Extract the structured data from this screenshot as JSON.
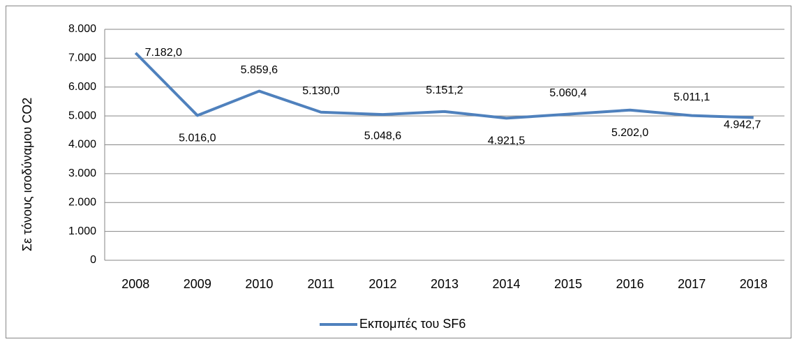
{
  "chart_data": {
    "type": "line",
    "ylabel": "Σε τόνους ισοδύναμου CO2",
    "categories": [
      "2008",
      "2009",
      "2010",
      "2011",
      "2012",
      "2013",
      "2014",
      "2015",
      "2016",
      "2017",
      "2018"
    ],
    "series": [
      {
        "name": "Εκπομπές του SF6",
        "color": "#4f81bd",
        "values": [
          7182.0,
          5016.0,
          5859.6,
          5130.0,
          5048.6,
          5151.2,
          4921.5,
          5060.4,
          5202.0,
          5011.1,
          4942.7
        ],
        "value_labels": [
          "7.182,0",
          "5.016,0",
          "5.859,6",
          "5.130,0",
          "5.048,6",
          "5.151,2",
          "4.921,5",
          "5.060,4",
          "5.202,0",
          "5.011,1",
          "4.942,7"
        ]
      }
    ],
    "ylim": [
      0,
      8000
    ],
    "yticks": [
      0,
      {
        "value": 1000,
        "label": "1.000"
      },
      {
        "value": 2000,
        "label": "2.000"
      },
      {
        "value": 3000,
        "label": "3.000"
      },
      {
        "value": 4000,
        "label": "4.000"
      },
      {
        "value": 5000,
        "label": "5.000"
      },
      {
        "value": 6000,
        "label": "6.000"
      },
      {
        "value": 7000,
        "label": "7.000"
      },
      {
        "value": 8000,
        "label": "8.000"
      }
    ],
    "grid": true,
    "legend": "bottom"
  }
}
